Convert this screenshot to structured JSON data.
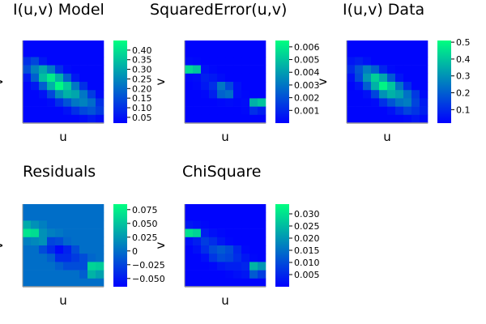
{
  "chart_data": [
    {
      "type": "heatmap",
      "title": "I(u,v) Model",
      "xlabel": "u",
      "ylabel": "v",
      "colorbar_ticks": [
        "0.05",
        "0.10",
        "0.15",
        "0.20",
        "0.25",
        "0.30",
        "0.35",
        "0.40"
      ],
      "colorbar_tick_values": [
        0.05,
        0.1,
        0.15,
        0.2,
        0.25,
        0.3,
        0.35,
        0.4
      ],
      "clim": [
        0.02,
        0.45
      ],
      "colormap": [
        "#0000ff",
        "#00ff80"
      ],
      "z": [
        [
          0.03,
          0.03,
          0.03,
          0.03,
          0.03,
          0.03,
          0.03,
          0.03,
          0.03,
          0.03
        ],
        [
          0.03,
          0.03,
          0.03,
          0.03,
          0.03,
          0.03,
          0.03,
          0.03,
          0.03,
          0.03
        ],
        [
          0.1,
          0.14,
          0.06,
          0.03,
          0.03,
          0.03,
          0.03,
          0.03,
          0.03,
          0.03
        ],
        [
          0.15,
          0.24,
          0.3,
          0.22,
          0.1,
          0.04,
          0.03,
          0.03,
          0.03,
          0.03
        ],
        [
          0.06,
          0.18,
          0.34,
          0.42,
          0.32,
          0.18,
          0.06,
          0.03,
          0.03,
          0.03
        ],
        [
          0.03,
          0.06,
          0.18,
          0.32,
          0.44,
          0.36,
          0.22,
          0.1,
          0.03,
          0.03
        ],
        [
          0.03,
          0.03,
          0.05,
          0.14,
          0.26,
          0.32,
          0.3,
          0.22,
          0.12,
          0.04
        ],
        [
          0.03,
          0.03,
          0.03,
          0.04,
          0.1,
          0.16,
          0.22,
          0.24,
          0.2,
          0.1
        ],
        [
          0.03,
          0.03,
          0.03,
          0.03,
          0.03,
          0.05,
          0.1,
          0.14,
          0.16,
          0.12
        ],
        [
          0.03,
          0.03,
          0.03,
          0.03,
          0.03,
          0.03,
          0.03,
          0.04,
          0.06,
          0.04
        ]
      ]
    },
    {
      "type": "heatmap",
      "title": "SquaredError(u,v)",
      "xlabel": "u",
      "ylabel": "v",
      "colorbar_ticks": [
        "0.001",
        "0.002",
        "0.003",
        "0.004",
        "0.005",
        "0.006"
      ],
      "colorbar_tick_values": [
        0.001,
        0.002,
        0.003,
        0.004,
        0.005,
        0.006
      ],
      "clim": [
        0.0,
        0.0065
      ],
      "colormap": [
        "#0000ff",
        "#00ff80"
      ],
      "z": [
        [
          0.0001,
          0.0001,
          0.0001,
          0.0001,
          0.0001,
          0.0001,
          0.0001,
          0.0001,
          0.0001,
          0.0001
        ],
        [
          0.0001,
          0.0001,
          0.0001,
          0.0001,
          0.0001,
          0.0001,
          0.0001,
          0.0001,
          0.0001,
          0.0001
        ],
        [
          0.0003,
          0.0002,
          0.0001,
          0.0001,
          0.0001,
          0.0001,
          0.0001,
          0.0001,
          0.0001,
          0.0001
        ],
        [
          0.0055,
          0.005,
          0.0004,
          0.0002,
          0.0001,
          0.0001,
          0.0001,
          0.0001,
          0.0001,
          0.0001
        ],
        [
          0.0002,
          0.0003,
          0.0008,
          0.0006,
          0.0003,
          0.0001,
          0.0001,
          0.0001,
          0.0001,
          0.0001
        ],
        [
          0.0001,
          0.0002,
          0.0006,
          0.0012,
          0.003,
          0.0018,
          0.0004,
          0.0001,
          0.0001,
          0.0001
        ],
        [
          0.0001,
          0.0001,
          0.0002,
          0.0008,
          0.0025,
          0.0028,
          0.0004,
          0.0002,
          0.0001,
          0.0001
        ],
        [
          0.0001,
          0.0001,
          0.0001,
          0.0001,
          0.0002,
          0.0003,
          0.0002,
          0.0003,
          0.0045,
          0.005
        ],
        [
          0.0001,
          0.0001,
          0.0001,
          0.0001,
          0.0001,
          0.0001,
          0.0001,
          0.0002,
          0.0012,
          0.0008
        ],
        [
          0.0001,
          0.0001,
          0.0001,
          0.0001,
          0.0001,
          0.0001,
          0.0001,
          0.0001,
          0.0001,
          0.0001
        ]
      ]
    },
    {
      "type": "heatmap",
      "title": "I(u,v) Data",
      "xlabel": "u",
      "ylabel": "v",
      "colorbar_ticks": [
        "0.1",
        "0.2",
        "0.3",
        "0.4",
        "0.5"
      ],
      "colorbar_tick_values": [
        0.1,
        0.2,
        0.3,
        0.4,
        0.5
      ],
      "clim": [
        0.02,
        0.51
      ],
      "colormap": [
        "#0000ff",
        "#00ff80"
      ],
      "z": [
        [
          0.03,
          0.03,
          0.03,
          0.03,
          0.03,
          0.03,
          0.03,
          0.03,
          0.03,
          0.03
        ],
        [
          0.03,
          0.03,
          0.03,
          0.03,
          0.03,
          0.03,
          0.03,
          0.03,
          0.03,
          0.03
        ],
        [
          0.06,
          0.08,
          0.05,
          0.03,
          0.03,
          0.03,
          0.03,
          0.03,
          0.03,
          0.03
        ],
        [
          0.1,
          0.18,
          0.26,
          0.2,
          0.09,
          0.04,
          0.03,
          0.03,
          0.03,
          0.03
        ],
        [
          0.05,
          0.16,
          0.31,
          0.42,
          0.34,
          0.19,
          0.06,
          0.03,
          0.03,
          0.03
        ],
        [
          0.03,
          0.06,
          0.2,
          0.36,
          0.49,
          0.4,
          0.24,
          0.1,
          0.03,
          0.03
        ],
        [
          0.03,
          0.03,
          0.05,
          0.15,
          0.3,
          0.36,
          0.33,
          0.24,
          0.13,
          0.04
        ],
        [
          0.03,
          0.03,
          0.03,
          0.04,
          0.11,
          0.18,
          0.24,
          0.26,
          0.15,
          0.07
        ],
        [
          0.03,
          0.03,
          0.03,
          0.03,
          0.03,
          0.05,
          0.1,
          0.15,
          0.12,
          0.08
        ],
        [
          0.03,
          0.03,
          0.03,
          0.03,
          0.03,
          0.03,
          0.03,
          0.04,
          0.06,
          0.04
        ]
      ]
    },
    {
      "type": "heatmap",
      "title": "Residuals",
      "xlabel": "u",
      "ylabel": "v",
      "colorbar_ticks": [
        "0.075",
        "0.050",
        "0.025",
        "0",
        "−0.025",
        "−0.050"
      ],
      "colorbar_tick_values": [
        0.075,
        0.05,
        0.025,
        0,
        -0.025,
        -0.05
      ],
      "clim": [
        -0.065,
        0.085
      ],
      "colormap": [
        "#0000ff",
        "#00ff80"
      ],
      "z": [
        [
          0.0,
          0.0,
          0.0,
          0.0,
          0.0,
          0.0,
          0.0,
          0.0,
          0.0,
          0.0
        ],
        [
          0.0,
          0.0,
          0.0,
          0.0,
          0.0,
          0.0,
          0.0,
          0.0,
          0.0,
          0.0
        ],
        [
          0.035,
          0.02,
          0.01,
          0.0,
          0.0,
          0.0,
          0.0,
          0.0,
          0.0,
          0.0
        ],
        [
          0.07,
          0.065,
          0.02,
          0.01,
          0.005,
          0.0,
          0.0,
          0.0,
          0.0,
          0.0
        ],
        [
          0.01,
          0.015,
          0.02,
          -0.025,
          -0.02,
          -0.005,
          0.0,
          0.0,
          0.0,
          0.0
        ],
        [
          0.0,
          0.0,
          -0.02,
          -0.04,
          -0.06,
          -0.045,
          -0.02,
          0.0,
          0.0,
          0.0
        ],
        [
          0.0,
          0.0,
          0.0,
          -0.01,
          -0.04,
          -0.04,
          -0.03,
          -0.02,
          -0.005,
          0.0
        ],
        [
          0.0,
          0.0,
          0.0,
          0.0,
          -0.01,
          -0.02,
          -0.02,
          -0.02,
          0.06,
          0.055
        ],
        [
          0.0,
          0.0,
          0.0,
          0.0,
          0.0,
          0.0,
          0.0,
          -0.01,
          0.04,
          0.03
        ],
        [
          0.0,
          0.0,
          0.0,
          0.0,
          0.0,
          0.0,
          0.0,
          0.0,
          0.0,
          0.0
        ]
      ]
    },
    {
      "type": "heatmap",
      "title": "ChiSquare",
      "xlabel": "u",
      "ylabel": "v",
      "colorbar_ticks": [
        "0.005",
        "0.010",
        "0.015",
        "0.020",
        "0.025",
        "0.030"
      ],
      "colorbar_tick_values": [
        0.005,
        0.01,
        0.015,
        0.02,
        0.025,
        0.03
      ],
      "clim": [
        0.0,
        0.034
      ],
      "colormap": [
        "#0000ff",
        "#00ff80"
      ],
      "z": [
        [
          0.0005,
          0.0005,
          0.0005,
          0.0005,
          0.0005,
          0.0005,
          0.0005,
          0.0005,
          0.0005,
          0.0005
        ],
        [
          0.0005,
          0.0005,
          0.0005,
          0.0005,
          0.0005,
          0.0005,
          0.0005,
          0.0005,
          0.0005,
          0.0005
        ],
        [
          0.003,
          0.002,
          0.001,
          0.0005,
          0.0005,
          0.0005,
          0.0005,
          0.0005,
          0.0005,
          0.0005
        ],
        [
          0.03,
          0.028,
          0.004,
          0.002,
          0.001,
          0.0005,
          0.0005,
          0.0005,
          0.0005,
          0.0005
        ],
        [
          0.002,
          0.004,
          0.008,
          0.006,
          0.003,
          0.001,
          0.0005,
          0.0005,
          0.0005,
          0.0005
        ],
        [
          0.0005,
          0.002,
          0.006,
          0.01,
          0.012,
          0.01,
          0.005,
          0.001,
          0.0005,
          0.0005
        ],
        [
          0.0005,
          0.0005,
          0.002,
          0.007,
          0.01,
          0.009,
          0.006,
          0.003,
          0.001,
          0.0005
        ],
        [
          0.0005,
          0.0005,
          0.0005,
          0.001,
          0.003,
          0.004,
          0.004,
          0.005,
          0.024,
          0.02
        ],
        [
          0.0005,
          0.0005,
          0.0005,
          0.0005,
          0.0005,
          0.001,
          0.002,
          0.003,
          0.012,
          0.008
        ],
        [
          0.0005,
          0.0005,
          0.0005,
          0.0005,
          0.0005,
          0.0005,
          0.0005,
          0.0005,
          0.0005,
          0.0005
        ]
      ]
    }
  ]
}
